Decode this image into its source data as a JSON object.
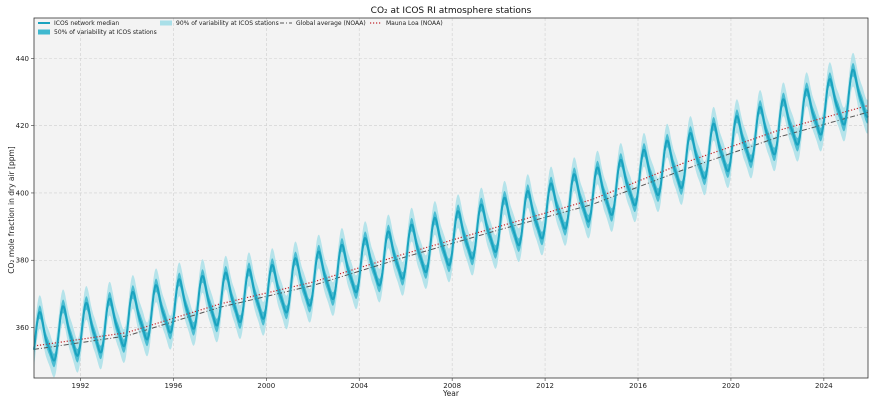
{
  "chart_data": {
    "type": "line",
    "title": "CO₂ at ICOS RI atmosphere stations",
    "xlabel": "Year",
    "ylabel": "CO₂ mole fraction in dry air [ppm]",
    "xlim": [
      1990.0,
      2025.9
    ],
    "ylim": [
      345,
      452
    ],
    "x_ticks": [
      1992,
      1996,
      2000,
      2004,
      2008,
      2012,
      2016,
      2020,
      2024
    ],
    "y_ticks": [
      360,
      380,
      400,
      420,
      440
    ],
    "grid": true,
    "legend_position": "top-left",
    "colors": {
      "median": "#1aa3bf",
      "band50": "#3fb8cf",
      "band90": "#a9dfe8",
      "global": "#555555",
      "mauna_loa": "#c0272d",
      "plot_bg": "#f3f3f3"
    },
    "series": [
      {
        "name": "ICOS network median",
        "kind": "line",
        "x": [
          1990.0,
          1990.5,
          1991.0,
          1992.0,
          1993.0,
          1994.0,
          1995.0,
          1996.0,
          1997.0,
          1998.0,
          1999.0,
          2000.0,
          2001.0,
          2002.0,
          2003.0,
          2004.0,
          2005.0,
          2006.0,
          2007.0,
          2008.0,
          2009.0,
          2010.0,
          2011.0,
          2012.0,
          2013.0,
          2014.0,
          2015.0,
          2016.0,
          2017.0,
          2018.0,
          2019.0,
          2020.0,
          2021.0,
          2022.0,
          2023.0,
          2024.0,
          2025.0,
          2025.9
        ],
        "trend": [
          357,
          356,
          358,
          359,
          360,
          362,
          364,
          366,
          367,
          368,
          369,
          370,
          372,
          374,
          376,
          378,
          380,
          382,
          384,
          386,
          388,
          390,
          392,
          394,
          397,
          399,
          401,
          404,
          407,
          409,
          412,
          414,
          417,
          419,
          422,
          425,
          428,
          430
        ],
        "seasonal_amplitude_ppm": 7
      },
      {
        "name": "50% of variability at ICOS stations",
        "kind": "band",
        "half_width_ppm": 2
      },
      {
        "name": "90% of variability at ICOS stations",
        "kind": "band",
        "half_width_ppm": 5
      },
      {
        "name": "Global average (NOAA)",
        "kind": "dashdot",
        "x": [
          1990.0,
          1994.0,
          1998.0,
          2002.0,
          2006.0,
          2010.0,
          2014.0,
          2018.0,
          2022.0,
          2025.9
        ],
        "y": [
          353.5,
          357.5,
          366,
          372.5,
          381,
          389,
          396.5,
          407,
          416.5,
          424
        ]
      },
      {
        "name": "Mauna Loa (NOAA)",
        "kind": "dotted",
        "x": [
          1990.0,
          1994.0,
          1998.0,
          2002.0,
          2006.0,
          2010.0,
          2014.0,
          2018.0,
          2022.0,
          2025.9
        ],
        "y": [
          354.5,
          358.5,
          367,
          373.5,
          382,
          390,
          398,
          409,
          418.5,
          426
        ]
      }
    ]
  }
}
